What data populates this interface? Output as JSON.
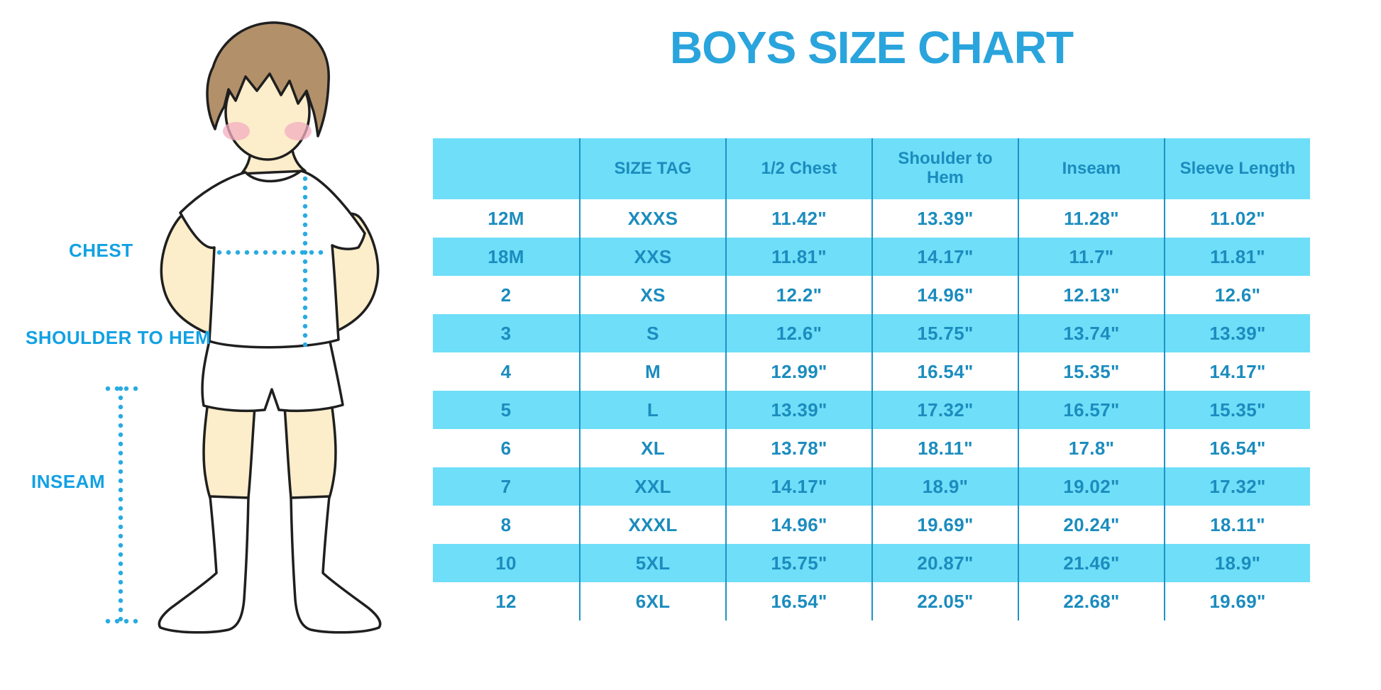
{
  "title": "BOYS SIZE CHART",
  "illustration": {
    "subject": "boy wearing white t-shirt, shorts and knee socks with dotted measurement guides",
    "labels": {
      "chest": "CHEST",
      "shoulder_to_hem": "SHOULDER TO HEM",
      "inseam": "INSEAM"
    }
  },
  "chart_data": {
    "type": "table",
    "title": "BOYS SIZE CHART",
    "columns": [
      "",
      "SIZE TAG",
      "1/2 Chest",
      "Shoulder to Hem",
      "Inseam",
      "Sleeve Length"
    ],
    "rows": [
      [
        "12M",
        "XXXS",
        "11.42\"",
        "13.39\"",
        "11.28\"",
        "11.02\""
      ],
      [
        "18M",
        "XXS",
        "11.81\"",
        "14.17\"",
        "11.7\"",
        "11.81\""
      ],
      [
        "2",
        "XS",
        "12.2\"",
        "14.96\"",
        "12.13\"",
        "12.6\""
      ],
      [
        "3",
        "S",
        "12.6\"",
        "15.75\"",
        "13.74\"",
        "13.39\""
      ],
      [
        "4",
        "M",
        "12.99\"",
        "16.54\"",
        "15.35\"",
        "14.17\""
      ],
      [
        "5",
        "L",
        "13.39\"",
        "17.32\"",
        "16.57\"",
        "15.35\""
      ],
      [
        "6",
        "XL",
        "13.78\"",
        "18.11\"",
        "17.8\"",
        "16.54\""
      ],
      [
        "7",
        "XXL",
        "14.17\"",
        "18.9\"",
        "19.02\"",
        "17.32\""
      ],
      [
        "8",
        "XXXL",
        "14.96\"",
        "19.69\"",
        "20.24\"",
        "18.11\""
      ],
      [
        "10",
        "5XL",
        "15.75\"",
        "20.87\"",
        "21.46\"",
        "18.9\""
      ],
      [
        "12",
        "6XL",
        "16.54\"",
        "22.05\"",
        "22.68\"",
        "19.69\""
      ]
    ],
    "layout_hints": {
      "header_background": "cyan",
      "row_striping": "white / cyan alternating starting with white",
      "gridlines": "vertical column dividers only"
    }
  },
  "colors": {
    "title_blue": "#2aa4dc",
    "table_text_blue": "#1b8cbe",
    "stripe_cyan": "#6fdef8",
    "divider_blue": "#1c93c6",
    "label_blue": "#12a1e3",
    "dotted_line_blue": "#29abe2",
    "skin": "#fcedcb",
    "hair_brown": "#b2906a",
    "blush_pink": "#f3adc0",
    "outline": "#1f1f1f"
  }
}
